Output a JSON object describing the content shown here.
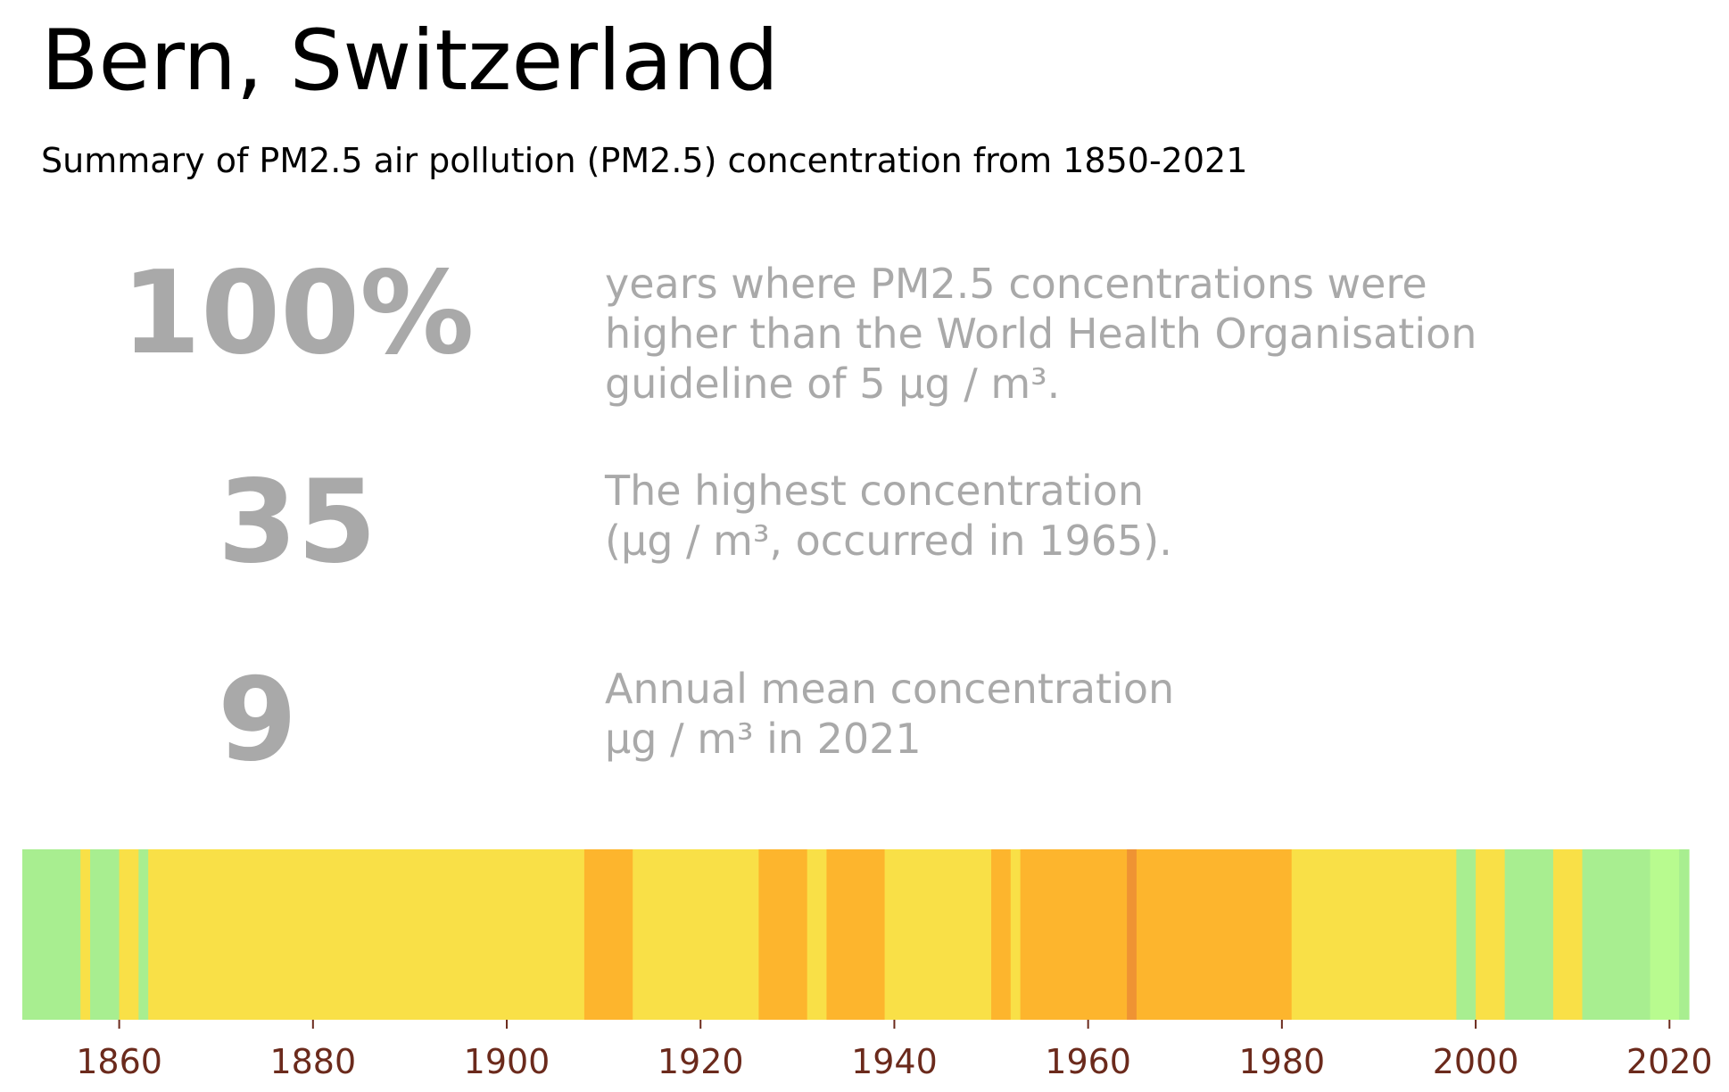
{
  "title": "Bern, Switzerland",
  "subtitle": "Summary of PM2.5 air pollution (PM2.5) concentration from 1850-2021",
  "stats": [
    {
      "value": "100%",
      "lines": [
        "years where PM2.5 concentrations were",
        "higher than the World Health Organisation",
        "guideline of 5 µg / m³."
      ]
    },
    {
      "value": "35",
      "lines": [
        "The highest concentration",
        "(µg / m³, occurred in 1965)."
      ]
    },
    {
      "value": "9",
      "lines": [
        "Annual mean concentration",
        "µg / m³ in 2021"
      ]
    }
  ],
  "chart_data": {
    "type": "heatmap",
    "xlim": [
      1850,
      2022
    ],
    "xticks": [
      1860,
      1880,
      1900,
      1920,
      1940,
      1960,
      1980,
      2000,
      2020
    ],
    "colors": {
      "green": "#a8ee90",
      "lightgreen": "#b8fb8f",
      "yellow": "#f9e047",
      "orange": "#fdb52d",
      "darkorange": "#ef9333",
      "tick": "#6b2a1c"
    },
    "segments": [
      {
        "start": 1850,
        "end": 1856,
        "level": "green"
      },
      {
        "start": 1856,
        "end": 1857,
        "level": "yellow"
      },
      {
        "start": 1857,
        "end": 1860,
        "level": "green"
      },
      {
        "start": 1860,
        "end": 1862,
        "level": "yellow"
      },
      {
        "start": 1862,
        "end": 1863,
        "level": "green"
      },
      {
        "start": 1863,
        "end": 1908,
        "level": "yellow"
      },
      {
        "start": 1908,
        "end": 1913,
        "level": "orange"
      },
      {
        "start": 1913,
        "end": 1926,
        "level": "yellow"
      },
      {
        "start": 1926,
        "end": 1931,
        "level": "orange"
      },
      {
        "start": 1931,
        "end": 1933,
        "level": "yellow"
      },
      {
        "start": 1933,
        "end": 1939,
        "level": "orange"
      },
      {
        "start": 1939,
        "end": 1950,
        "level": "yellow"
      },
      {
        "start": 1950,
        "end": 1952,
        "level": "orange"
      },
      {
        "start": 1952,
        "end": 1953,
        "level": "yellow"
      },
      {
        "start": 1953,
        "end": 1964,
        "level": "orange"
      },
      {
        "start": 1964,
        "end": 1965,
        "level": "darkorange"
      },
      {
        "start": 1965,
        "end": 1981,
        "level": "orange"
      },
      {
        "start": 1981,
        "end": 1998,
        "level": "yellow"
      },
      {
        "start": 1998,
        "end": 2000,
        "level": "green"
      },
      {
        "start": 2000,
        "end": 2003,
        "level": "yellow"
      },
      {
        "start": 2003,
        "end": 2008,
        "level": "green"
      },
      {
        "start": 2008,
        "end": 2011,
        "level": "yellow"
      },
      {
        "start": 2011,
        "end": 2018,
        "level": "green"
      },
      {
        "start": 2018,
        "end": 2021,
        "level": "lightgreen"
      },
      {
        "start": 2021,
        "end": 2022,
        "level": "green"
      }
    ]
  }
}
